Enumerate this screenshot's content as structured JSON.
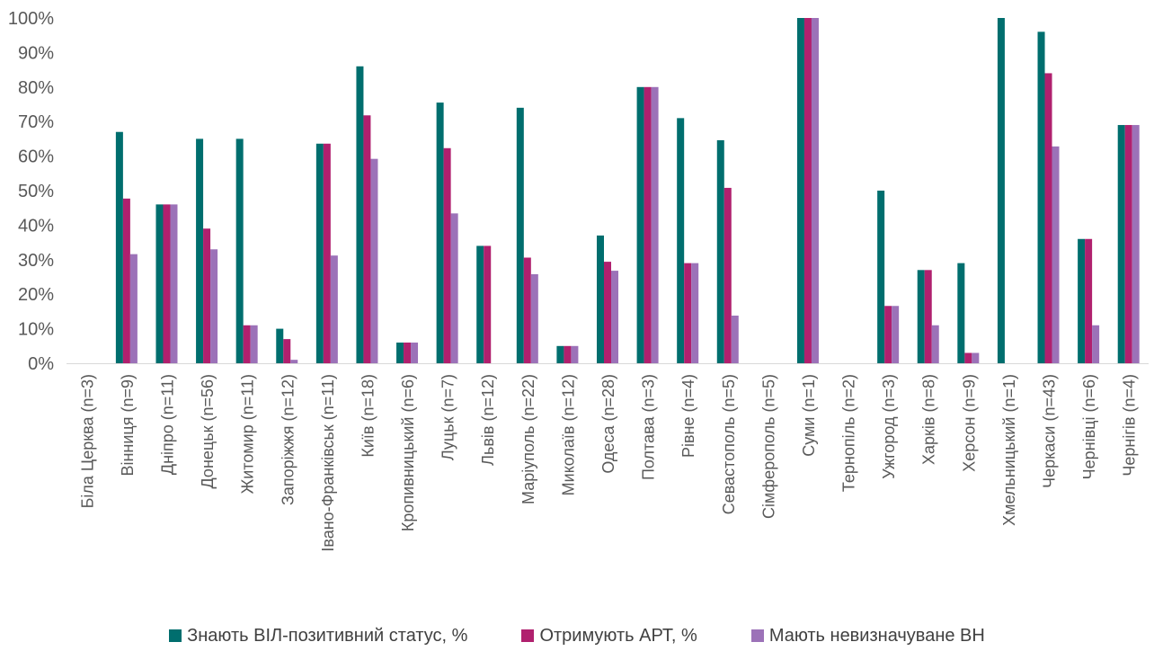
{
  "chart_data": {
    "type": "bar",
    "title": "",
    "xlabel": "",
    "ylabel": "",
    "ylim": [
      0,
      100
    ],
    "yticks": [
      "0%",
      "10%",
      "20%",
      "30%",
      "40%",
      "50%",
      "60%",
      "70%",
      "80%",
      "90%",
      "100%"
    ],
    "grid": false,
    "legend_position": "bottom",
    "categories": [
      "Біла Церква (n=3)",
      "Вінниця (n=9)",
      "Дніпро (n=11)",
      "Донецьк (n=56)",
      "Житомир (n=11)",
      "Запоріжжя (n=12)",
      "Івано-Франківськ (n=11)",
      "Київ (n=18)",
      "Кропивницький (n=6)",
      "Луцьк (n=7)",
      "Львів (n=12)",
      "Маріуполь (n=22)",
      "Миколаїв (n=12)",
      "Одеса (n=28)",
      "Полтава (n=3)",
      "Рівне (n=4)",
      "Севастополь (n=5)",
      "Сімферополь (n=5)",
      "Суми (n=1)",
      "Тернопіль (n=2)",
      "Ужгород (n=3)",
      "Харків (n=8)",
      "Херсон (n=9)",
      "Хмельницький (n=1)",
      "Черкаси (n=43)",
      "Чернівці (n=6)",
      "Чернігів (n=4)"
    ],
    "series": [
      {
        "name": "Знають ВІЛ-позитивний статус, %",
        "color": "#006E6E",
        "values": [
          0,
          67,
          46,
          65,
          65,
          10,
          63.6,
          86,
          6,
          75.5,
          34,
          74,
          5,
          37,
          80,
          71,
          64.6,
          0,
          100,
          0,
          50,
          27,
          29,
          100,
          96,
          36,
          69
        ]
      },
      {
        "name": "Отримують АРТ, %",
        "color": "#B0206E",
        "values": [
          0,
          47.7,
          46,
          39,
          11,
          7,
          63.6,
          71.8,
          6,
          62.3,
          34,
          30.6,
          5,
          29.4,
          80,
          29,
          50.8,
          0,
          100,
          0,
          16.6,
          27,
          3,
          0,
          84,
          36,
          69
        ]
      },
      {
        "name": "Мають невизначуване ВН",
        "color": "#9C72B8",
        "values": [
          0,
          31.6,
          46,
          33,
          11,
          1,
          31.2,
          59.2,
          6,
          43.4,
          0,
          25.8,
          5,
          26.8,
          80,
          29,
          13.8,
          0,
          100,
          0,
          16.6,
          11,
          3,
          0,
          62.8,
          11,
          69
        ]
      }
    ]
  }
}
